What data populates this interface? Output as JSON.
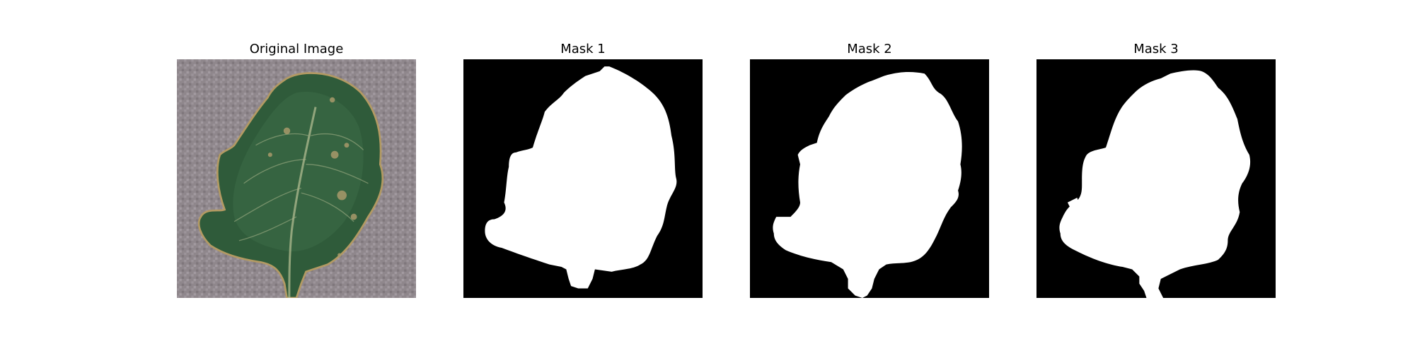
{
  "figure": {
    "panels": [
      {
        "title": "Original Image",
        "kind": "photo"
      },
      {
        "title": "Mask 1",
        "kind": "mask"
      },
      {
        "title": "Mask 2",
        "kind": "mask"
      },
      {
        "title": "Mask 3",
        "kind": "mask"
      }
    ]
  },
  "colors": {
    "mask_background": "#000000",
    "mask_foreground": "#ffffff",
    "photo_background": "#8f878c",
    "leaf_dark": "#2f5b3a",
    "leaf_mid": "#3c6c47",
    "leaf_vein": "#a9b58b",
    "leaf_edge": "#b39a63",
    "spot": "#a99a6b"
  }
}
